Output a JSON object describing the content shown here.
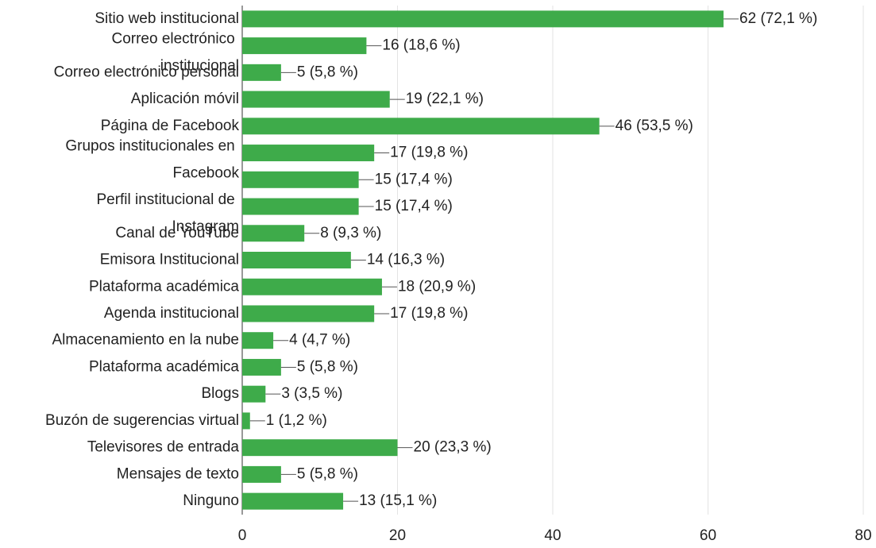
{
  "chart_data": {
    "type": "barh",
    "categories": [
      "Sitio web institucional",
      "Correo electrónico institucional",
      "Correo electrónico personal",
      "Aplicación móvil",
      "Página de Facebook",
      "Grupos institucionales en Facebook",
      null,
      "Perfil institucional de Instagram",
      "Canal de YouTube",
      "Emisora Institucional",
      "Plataforma académica",
      "Agenda institucional",
      "Almacenamiento en la nube",
      "Plataforma académica",
      "Blogs",
      "Buzón de sugerencias virtual",
      "Televisores de entrada",
      "Mensajes de texto",
      "Ninguno"
    ],
    "values": [
      62,
      16,
      5,
      19,
      46,
      17,
      15,
      15,
      8,
      14,
      18,
      17,
      4,
      5,
      3,
      1,
      20,
      5,
      13
    ],
    "value_labels": [
      "62 (72,1 %)",
      "16 (18,6 %)",
      "5 (5,8 %)",
      "19 (22,1 %)",
      "46 (53,5 %)",
      "17 (19,8 %)",
      "15 (17,4 %)",
      "15 (17,4 %)",
      "8 (9,3 %)",
      "14 (16,3 %)",
      "18 (20,9 %)",
      "17 (19,8 %)",
      "4 (4,7 %)",
      "5 (5,8 %)",
      "3 (3,5 %)",
      "1 (1,2 %)",
      "20 (23,3 %)",
      "5 (5,8 %)",
      "13 (15,1 %)"
    ],
    "color": "#3eab4a",
    "xlim": [
      0,
      80
    ],
    "xticks": [
      0,
      20,
      40,
      60,
      80
    ],
    "grid": true
  }
}
